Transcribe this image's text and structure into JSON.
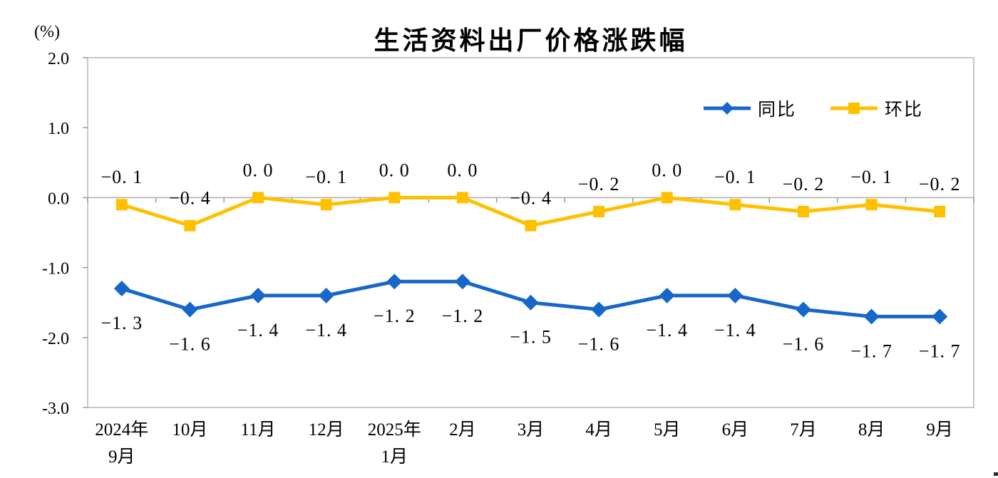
{
  "chart_data": {
    "type": "line",
    "title": "生活资料出厂价格涨跌幅",
    "unit_label": "(%)",
    "categories": [
      [
        "2024年",
        "9月"
      ],
      [
        "10月"
      ],
      [
        "11月"
      ],
      [
        "12月"
      ],
      [
        "2025年",
        "1月"
      ],
      [
        "2月"
      ],
      [
        "3月"
      ],
      [
        "4月"
      ],
      [
        "5月"
      ],
      [
        "6月"
      ],
      [
        "7月"
      ],
      [
        "8月"
      ],
      [
        "9月"
      ]
    ],
    "series": [
      {
        "name": "同比",
        "color": "#1766C9",
        "marker": "diamond",
        "label_position": "below",
        "values": [
          -1.3,
          -1.6,
          -1.4,
          -1.4,
          -1.2,
          -1.2,
          -1.5,
          -1.6,
          -1.4,
          -1.4,
          -1.6,
          -1.7,
          -1.7
        ]
      },
      {
        "name": "环比",
        "color": "#FFC000",
        "marker": "square",
        "label_position": "above",
        "values": [
          -0.1,
          -0.4,
          0.0,
          -0.1,
          0.0,
          0.0,
          -0.4,
          -0.2,
          0.0,
          -0.1,
          -0.2,
          -0.1,
          -0.2
        ]
      }
    ],
    "y_axis": {
      "min": -3.0,
      "max": 2.0,
      "tick_step": 1.0,
      "tick_labels": [
        "2.0",
        "1.0",
        "0.0",
        "-1.0",
        "-2.0",
        "-3.0"
      ]
    },
    "grid": false,
    "legend_position": "top-right",
    "colors": {
      "axis": "#B5B5B5",
      "zero_line": "#ABABAB",
      "tick": "#9B9B9B",
      "text": "#000000"
    }
  }
}
